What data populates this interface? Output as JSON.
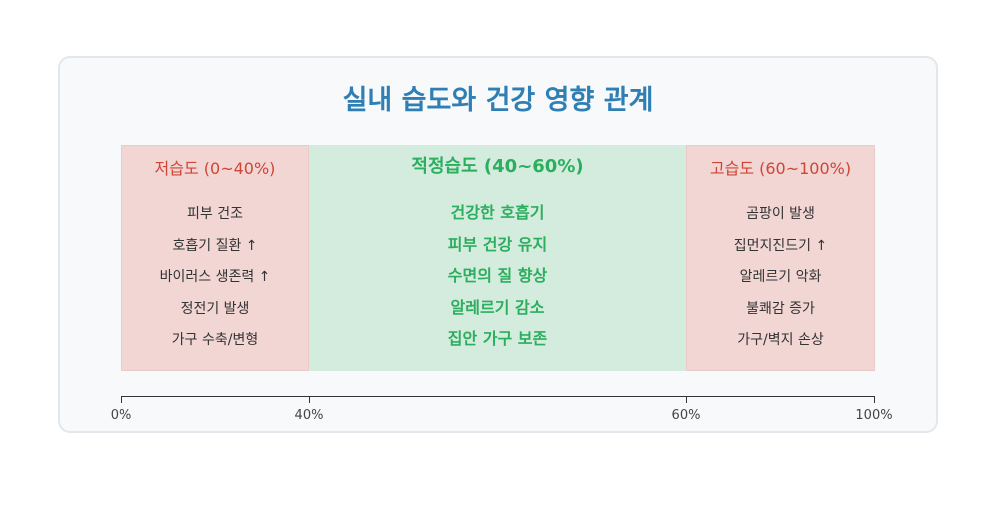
{
  "title": "실내 습도와 건강 영향 관계",
  "zones": {
    "low": {
      "header": "저습도 (0~40%)",
      "items": [
        "피부 건조",
        "호흡기 질환 ↑",
        "바이러스 생존력 ↑",
        "정전기 발생",
        "가구 수축/변형"
      ],
      "color": "#cf4536",
      "background": "#f1d6d4"
    },
    "optimal": {
      "header": "적정습도 (40~60%)",
      "items": [
        "건강한 호흡기",
        "피부 건강 유지",
        "수면의 질 향상",
        "알레르기 감소",
        "집안 가구 보존"
      ],
      "color": "#2cae5f",
      "background": "#d3ecdd"
    },
    "high": {
      "header": "고습도 (60~100%)",
      "items": [
        "곰팡이 발생",
        "집먼지진드기 ↑",
        "알레르기 악화",
        "불쾌감 증가",
        "가구/벽지 손상"
      ],
      "color": "#cf4536",
      "background": "#f1d6d4"
    }
  },
  "axis": {
    "ticks": [
      "0%",
      "40%",
      "60%",
      "100%"
    ]
  },
  "colors": {
    "title": "#2f7fb4"
  }
}
